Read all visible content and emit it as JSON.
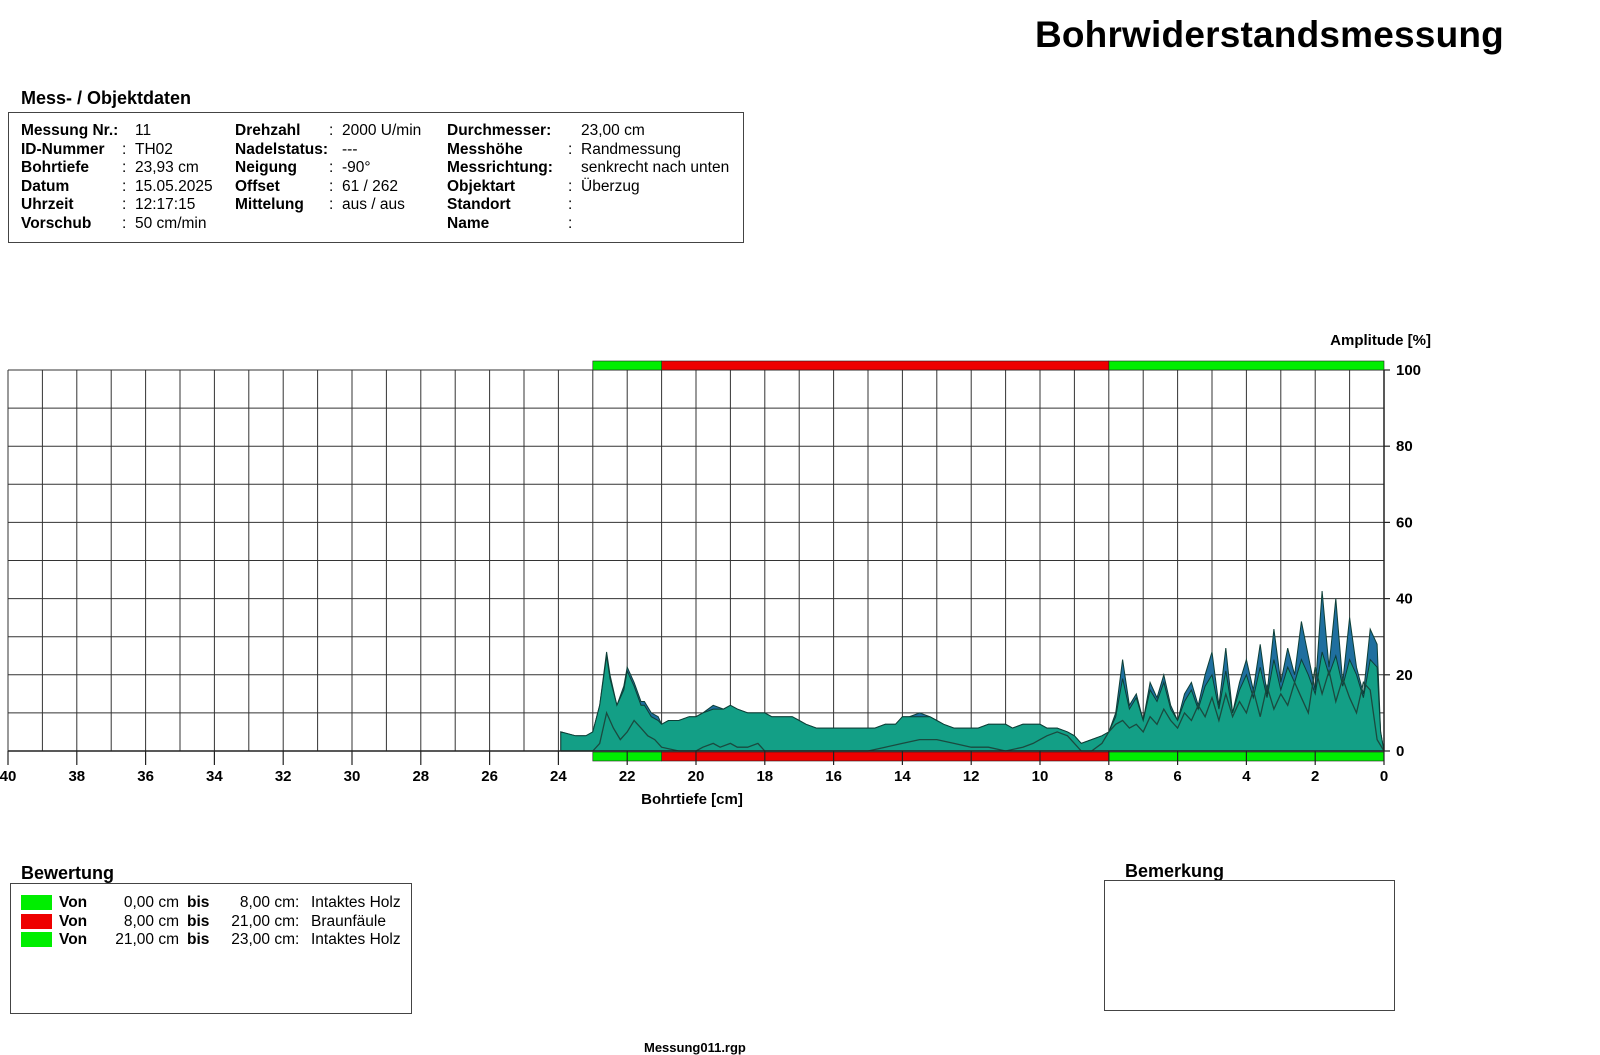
{
  "header": {
    "title": "Bohrwiderstandsmessung"
  },
  "objektdaten": {
    "title": "Mess- / Objektdaten",
    "columns": [
      [
        {
          "label": "Messung Nr.:",
          "sep": "",
          "value": "11"
        },
        {
          "label": "ID-Nummer",
          "sep": ":",
          "value": "TH02"
        },
        {
          "label": "Bohrtiefe",
          "sep": ":",
          "value": "23,93 cm"
        },
        {
          "label": "Datum",
          "sep": ":",
          "value": "15.05.2025"
        },
        {
          "label": "Uhrzeit",
          "sep": ":",
          "value": "12:17:15"
        },
        {
          "label": "Vorschub",
          "sep": ":",
          "value": "50 cm/min"
        }
      ],
      [
        {
          "label": "Drehzahl",
          "sep": ":",
          "value": "2000 U/min"
        },
        {
          "label": "Nadelstatus:",
          "sep": "",
          "value": "---"
        },
        {
          "label": "Neigung",
          "sep": ":",
          "value": "-90°"
        },
        {
          "label": "Offset",
          "sep": ":",
          "value": "61 / 262"
        },
        {
          "label": "Mittelung",
          "sep": ":",
          "value": "aus / aus"
        }
      ],
      [
        {
          "label": "Durchmesser:",
          "sep": "",
          "value": "23,00 cm"
        },
        {
          "label": "Messhöhe",
          "sep": ":",
          "value": "Randmessung"
        },
        {
          "label": "Messrichtung:",
          "sep": "",
          "value": "senkrecht nach unten"
        },
        {
          "label": "Objektart",
          "sep": ":",
          "value": "Überzug"
        },
        {
          "label": "Standort",
          "sep": ":",
          "value": ""
        },
        {
          "label": "Name",
          "sep": ":",
          "value": ""
        }
      ]
    ]
  },
  "chart_data": {
    "type": "area",
    "xlabel": "Bohrtiefe [cm]",
    "ylabel": "Amplitude [%]",
    "xlim": [
      40,
      0
    ],
    "ylim": [
      0,
      100
    ],
    "x_ticks": [
      40,
      38,
      36,
      34,
      32,
      30,
      28,
      26,
      24,
      22,
      20,
      18,
      16,
      14,
      12,
      10,
      8,
      6,
      4,
      2,
      0
    ],
    "y_ticks": [
      0,
      20,
      40,
      60,
      80,
      100
    ],
    "grid": true,
    "rating_segments": [
      {
        "from": 0,
        "to": 8,
        "color": "#00ee00"
      },
      {
        "from": 8,
        "to": 21,
        "color": "#ee0000"
      },
      {
        "from": 21,
        "to": 23,
        "color": "#00ee00"
      }
    ],
    "series": [
      {
        "color": "#1f6f9f",
        "x": [
          23.93,
          23.5,
          23.2,
          23.0,
          22.8,
          22.6,
          22.5,
          22.3,
          22.1,
          22.0,
          21.8,
          21.6,
          21.5,
          21.3,
          21.1,
          21.0,
          20.8,
          20.5,
          20.2,
          20.0,
          19.8,
          19.5,
          19.2,
          19.0,
          18.8,
          18.5,
          18.2,
          18.0,
          17.8,
          17.5,
          17.2,
          17.0,
          16.8,
          16.5,
          16.2,
          16.0,
          15.8,
          15.5,
          15.2,
          15.0,
          14.8,
          14.5,
          14.2,
          14.0,
          13.8,
          13.5,
          13.2,
          13.0,
          12.8,
          12.5,
          12.2,
          12.0,
          11.8,
          11.5,
          11.2,
          11.0,
          10.8,
          10.5,
          10.2,
          10.0,
          9.8,
          9.5,
          9.2,
          9.0,
          8.8,
          8.5,
          8.2,
          8.0,
          7.8,
          7.6,
          7.4,
          7.2,
          7.0,
          6.8,
          6.6,
          6.4,
          6.2,
          6.0,
          5.8,
          5.6,
          5.4,
          5.2,
          5.0,
          4.8,
          4.6,
          4.4,
          4.2,
          4.0,
          3.8,
          3.6,
          3.4,
          3.2,
          3.0,
          2.8,
          2.6,
          2.4,
          2.2,
          2.0,
          1.8,
          1.6,
          1.4,
          1.2,
          1.0,
          0.8,
          0.6,
          0.4,
          0.2,
          0.1,
          0.0
        ],
        "y": [
          5,
          4,
          4,
          5,
          12,
          26,
          20,
          12,
          17,
          22,
          18,
          13,
          13,
          10,
          9,
          7,
          8,
          8,
          9,
          9,
          10,
          12,
          11,
          12,
          11,
          10,
          10,
          10,
          9,
          9,
          9,
          8,
          7,
          6,
          6,
          6,
          6,
          6,
          6,
          6,
          6,
          7,
          7,
          9,
          9,
          10,
          9,
          8,
          7,
          6,
          6,
          6,
          6,
          7,
          7,
          7,
          6,
          7,
          7,
          7,
          6,
          6,
          5,
          4,
          2,
          3,
          4,
          5,
          10,
          24,
          12,
          15,
          8,
          18,
          14,
          20,
          12,
          8,
          15,
          18,
          12,
          20,
          26,
          12,
          27,
          10,
          18,
          24,
          16,
          28,
          15,
          32,
          18,
          27,
          20,
          34,
          25,
          16,
          42,
          22,
          40,
          18,
          35,
          22,
          15,
          32,
          28,
          5,
          0
        ]
      },
      {
        "color": "#139f86",
        "x": [
          23.93,
          23.5,
          23.2,
          23.0,
          22.8,
          22.6,
          22.5,
          22.3,
          22.1,
          22.0,
          21.8,
          21.6,
          21.5,
          21.3,
          21.1,
          21.0,
          20.8,
          20.5,
          20.2,
          20.0,
          19.8,
          19.5,
          19.2,
          19.0,
          18.8,
          18.5,
          18.2,
          18.0,
          17.8,
          17.5,
          17.2,
          17.0,
          16.8,
          16.5,
          16.2,
          16.0,
          15.8,
          15.5,
          15.2,
          15.0,
          14.8,
          14.5,
          14.2,
          14.0,
          13.8,
          13.5,
          13.2,
          13.0,
          12.8,
          12.5,
          12.2,
          12.0,
          11.8,
          11.5,
          11.2,
          11.0,
          10.8,
          10.5,
          10.2,
          10.0,
          9.8,
          9.5,
          9.2,
          9.0,
          8.8,
          8.5,
          8.2,
          8.0,
          7.8,
          7.6,
          7.4,
          7.2,
          7.0,
          6.8,
          6.6,
          6.4,
          6.2,
          6.0,
          5.8,
          5.6,
          5.4,
          5.2,
          5.0,
          4.8,
          4.6,
          4.4,
          4.2,
          4.0,
          3.8,
          3.6,
          3.4,
          3.2,
          3.0,
          2.8,
          2.6,
          2.4,
          2.2,
          2.0,
          1.8,
          1.6,
          1.4,
          1.2,
          1.0,
          0.8,
          0.6,
          0.4,
          0.2,
          0.1,
          0.0
        ],
        "y": [
          5,
          4,
          4,
          5,
          12,
          25,
          19,
          12,
          16,
          21,
          17,
          12,
          12,
          9,
          8,
          7,
          8,
          8,
          9,
          9,
          10,
          11,
          11,
          12,
          11,
          10,
          10,
          10,
          9,
          9,
          9,
          8,
          7,
          6,
          6,
          6,
          6,
          6,
          6,
          6,
          6,
          7,
          7,
          9,
          9,
          9,
          9,
          8,
          7,
          6,
          6,
          6,
          6,
          7,
          7,
          7,
          6,
          7,
          7,
          7,
          6,
          6,
          5,
          4,
          2,
          3,
          4,
          5,
          9,
          19,
          11,
          14,
          8,
          16,
          13,
          18,
          11,
          8,
          13,
          16,
          11,
          17,
          20,
          11,
          21,
          10,
          16,
          20,
          14,
          22,
          14,
          24,
          16,
          22,
          18,
          24,
          20,
          15,
          26,
          20,
          25,
          17,
          24,
          20,
          14,
          24,
          22,
          5,
          0
        ]
      },
      {
        "color": "#1a4a3f",
        "x": [
          23.93,
          23.5,
          23.2,
          23.0,
          22.8,
          22.6,
          22.4,
          22.2,
          22.0,
          21.8,
          21.6,
          21.4,
          21.2,
          21.0,
          20.5,
          20.0,
          19.8,
          19.5,
          19.3,
          19.0,
          18.8,
          18.5,
          18.2,
          18.0,
          17.5,
          17.0,
          16.5,
          16.0,
          15.5,
          15.0,
          14.5,
          14.0,
          13.5,
          13.0,
          12.5,
          12.0,
          11.5,
          11.0,
          10.5,
          10.2,
          10.0,
          9.8,
          9.5,
          9.2,
          9.0,
          8.8,
          8.5,
          8.2,
          8.0,
          7.8,
          7.6,
          7.4,
          7.2,
          7.0,
          6.8,
          6.6,
          6.4,
          6.2,
          6.0,
          5.8,
          5.6,
          5.4,
          5.2,
          5.0,
          4.8,
          4.6,
          4.4,
          4.2,
          4.0,
          3.8,
          3.6,
          3.4,
          3.2,
          3.0,
          2.8,
          2.6,
          2.4,
          2.2,
          2.0,
          1.8,
          1.6,
          1.4,
          1.2,
          1.0,
          0.8,
          0.6,
          0.4,
          0.2,
          0.0
        ],
        "y": [
          0,
          0,
          0,
          0,
          2,
          10,
          6,
          3,
          5,
          8,
          6,
          4,
          3,
          1,
          0,
          0,
          1,
          2,
          1,
          2,
          1,
          1,
          2,
          0,
          0,
          0,
          0,
          0,
          0,
          0,
          1,
          2,
          3,
          3,
          2,
          1,
          1,
          0,
          1,
          2,
          3,
          4,
          5,
          4,
          2,
          0,
          0,
          2,
          5,
          7,
          8,
          6,
          7,
          5,
          9,
          7,
          11,
          8,
          6,
          10,
          8,
          12,
          9,
          14,
          8,
          15,
          9,
          13,
          10,
          16,
          9,
          17,
          11,
          15,
          12,
          18,
          14,
          10,
          22,
          15,
          21,
          13,
          19,
          14,
          10,
          18,
          16,
          3,
          0
        ]
      }
    ]
  },
  "bewertung": {
    "title": "Bewertung",
    "rows": [
      {
        "color": "#00ee00",
        "von": "Von",
        "from": "0,00 cm",
        "bis": "bis",
        "to": "8,00 cm",
        "sep": ":",
        "text": "Intaktes Holz"
      },
      {
        "color": "#ee0000",
        "von": "Von",
        "from": "8,00 cm",
        "bis": "bis",
        "to": "21,00 cm",
        "sep": ":",
        "text": "Braunfäule"
      },
      {
        "color": "#00ee00",
        "von": "Von",
        "from": "21,00 cm",
        "bis": "bis",
        "to": "23,00 cm",
        "sep": ":",
        "text": "Intaktes Holz"
      }
    ]
  },
  "bemerkung": {
    "title": "Bemerkung",
    "text": ""
  },
  "footer": {
    "filename": "Messung011.rgp"
  }
}
